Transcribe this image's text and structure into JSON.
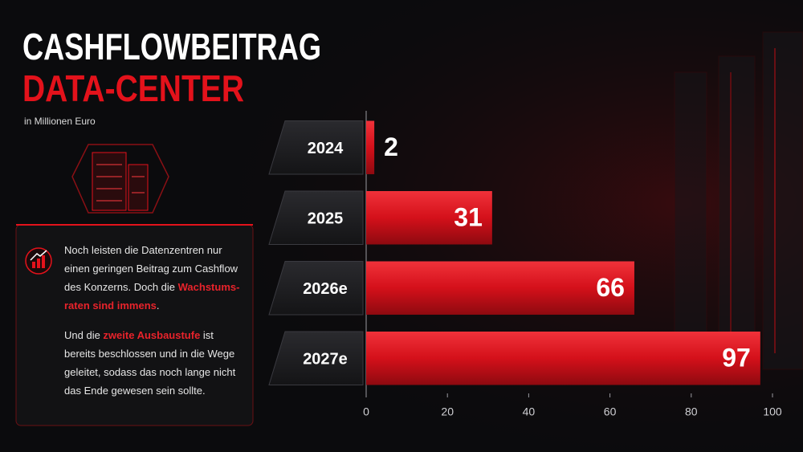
{
  "chart_data": {
    "type": "hbar",
    "title": "CASHFLOWBEITRAG",
    "title_line2": "DATA-CENTER",
    "subtitle": "in Millionen Euro",
    "categories": [
      "2024",
      "2025",
      "2026e",
      "2027e"
    ],
    "values": [
      2,
      31,
      66,
      97
    ],
    "color": "#e3121b",
    "xlim": [
      0,
      100
    ],
    "xticks": [
      0,
      20,
      40,
      60,
      80,
      100
    ]
  },
  "note": {
    "highlight_color": "#e8232b",
    "paragraphs": [
      [
        "Noch leisten die Datenzentren nur einen geringen Beitrag zum Cashflow des Konzerns. Doch die ",
        "Wachstums-raten sind immens",
        "."
      ],
      [
        "Und die ",
        "zweite Ausbaustufe",
        " ist bereits beschlossen und in die Wege geleitet, sodass das noch lange nicht das Ende gewesen sein sollte."
      ]
    ]
  }
}
